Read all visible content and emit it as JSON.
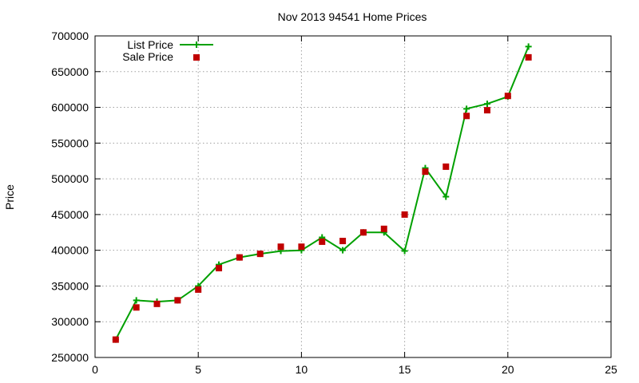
{
  "chart_data": {
    "type": "line",
    "title": "Nov 2013 94541 Home Prices",
    "xlabel": "",
    "ylabel": "Price",
    "xlim": [
      0,
      25
    ],
    "ylim": [
      250000,
      700000
    ],
    "xticks": [
      0,
      5,
      10,
      15,
      20,
      25
    ],
    "yticks": [
      250000,
      300000,
      350000,
      400000,
      450000,
      500000,
      550000,
      600000,
      650000,
      700000
    ],
    "grid": true,
    "legend_position": "top-left",
    "series": [
      {
        "name": "List Price",
        "kind": "line-with-plus-markers",
        "color": "#00a000",
        "x": [
          1,
          2,
          3,
          4,
          5,
          6,
          7,
          8,
          9,
          10,
          11,
          12,
          13,
          14,
          15,
          16,
          17,
          18,
          19,
          20,
          21
        ],
        "y": [
          275000,
          330000,
          328000,
          330000,
          350000,
          380000,
          390000,
          395000,
          399000,
          400000,
          418000,
          400000,
          425000,
          425000,
          399000,
          515000,
          475000,
          598000,
          605000,
          615000,
          685000
        ]
      },
      {
        "name": "Sale Price",
        "kind": "square-markers",
        "color": "#c00000",
        "x": [
          1,
          2,
          3,
          4,
          5,
          6,
          7,
          8,
          9,
          10,
          11,
          12,
          13,
          14,
          15,
          16,
          17,
          18,
          19,
          20,
          21
        ],
        "y": [
          275000,
          320000,
          325000,
          330000,
          345000,
          375000,
          390000,
          395000,
          405000,
          405000,
          412000,
          413000,
          425000,
          430000,
          450000,
          510000,
          517000,
          588000,
          596000,
          616000,
          670000
        ]
      }
    ]
  }
}
